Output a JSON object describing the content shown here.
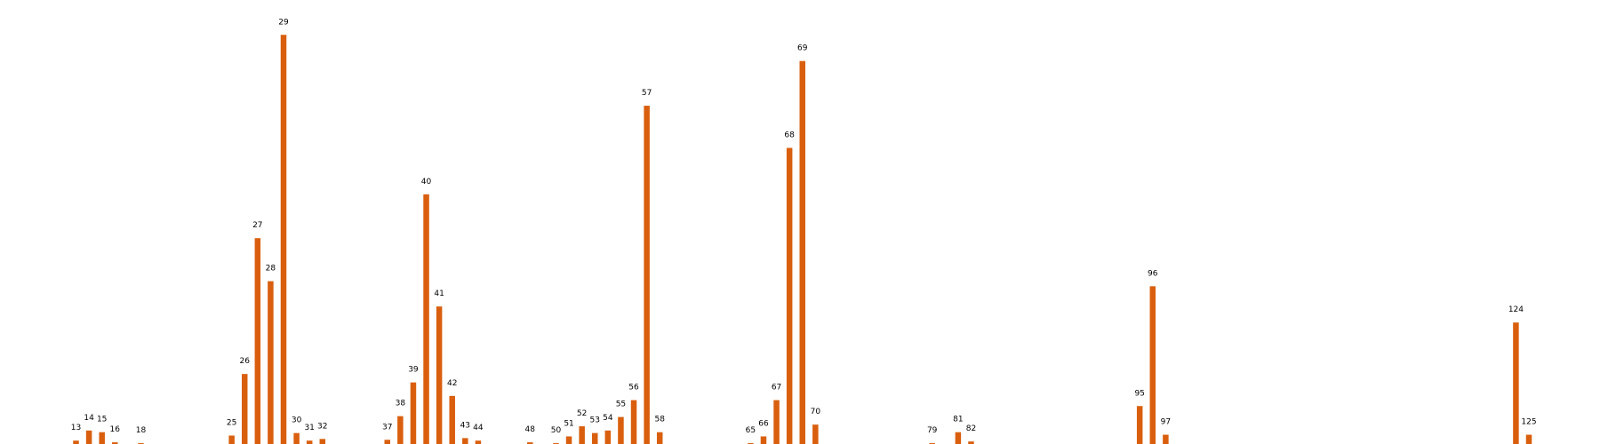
{
  "chart_data": {
    "type": "bar",
    "color": "#d95f0e",
    "categories": [
      "13",
      "14",
      "15",
      "16",
      "18",
      "25",
      "26",
      "27",
      "28",
      "29",
      "30",
      "31",
      "32",
      "37",
      "38",
      "39",
      "40",
      "41",
      "42",
      "43",
      "44",
      "48",
      "50",
      "51",
      "52",
      "53",
      "54",
      "55",
      "56",
      "57",
      "58",
      "65",
      "66",
      "67",
      "68",
      "69",
      "70",
      "79",
      "81",
      "82",
      "95",
      "96",
      "97",
      "124",
      "125"
    ],
    "x": [
      13,
      14,
      15,
      16,
      18,
      25,
      26,
      27,
      28,
      29,
      30,
      31,
      32,
      37,
      38,
      39,
      40,
      41,
      42,
      43,
      44,
      48,
      50,
      51,
      52,
      53,
      54,
      55,
      56,
      57,
      58,
      65,
      66,
      67,
      68,
      69,
      70,
      79,
      81,
      82,
      95,
      96,
      97,
      124,
      125
    ],
    "values": [
      0.4,
      1.6,
      1.4,
      0.2,
      0.1,
      1.0,
      8.3,
      24.4,
      19.3,
      48.5,
      1.3,
      0.4,
      0.6,
      0.5,
      3.3,
      7.3,
      29.6,
      16.3,
      5.7,
      0.7,
      0.4,
      0.2,
      0.1,
      0.9,
      2.1,
      1.3,
      1.6,
      3.2,
      5.2,
      40.1,
      1.4,
      0.1,
      0.9,
      5.2,
      35.1,
      45.4,
      2.3,
      0.1,
      1.4,
      0.3,
      4.5,
      18.7,
      1.1,
      14.4,
      1.1
    ],
    "ylim": [
      0,
      50
    ],
    "grid": false,
    "legend": "none"
  }
}
